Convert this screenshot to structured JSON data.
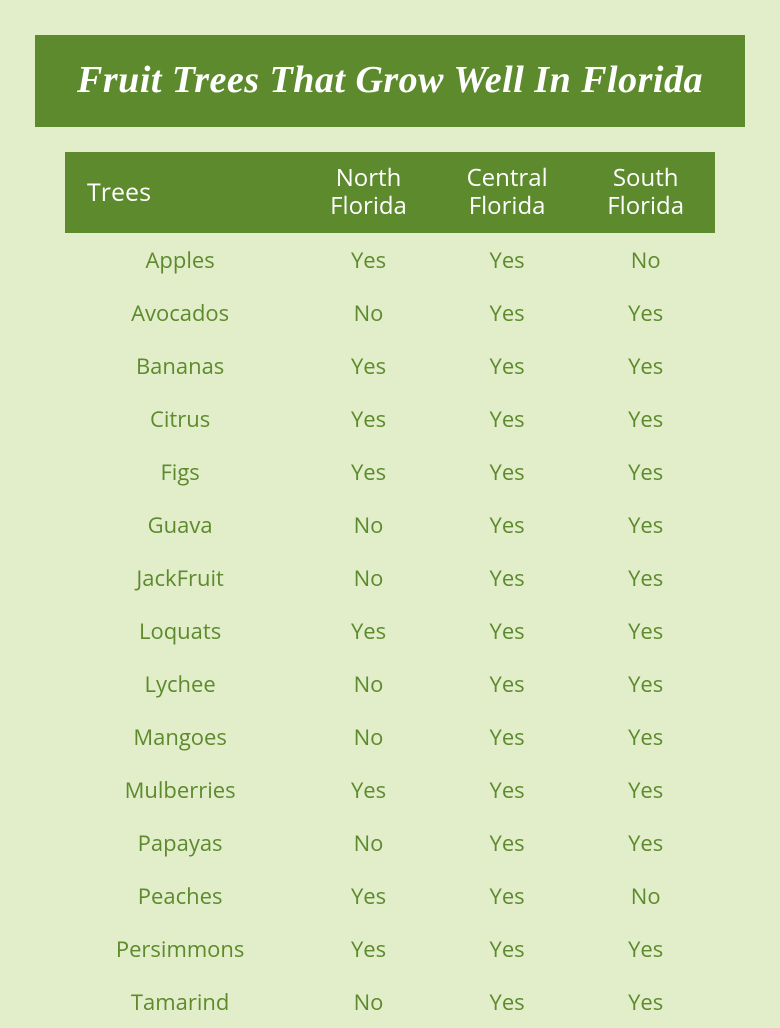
{
  "title": "Fruit Trees That Grow Well In Florida",
  "background_color": "#e1eec9",
  "banner_color": "#5d8a2c",
  "text_color": "#5d8a2c",
  "header_text_color": "#ffffff",
  "title_fontsize": 38,
  "header_fontsize": 24,
  "cell_fontsize": 22,
  "columns": [
    "Trees",
    "North Florida",
    "Central Florida",
    "South Florida"
  ],
  "rows": [
    [
      "Apples",
      "Yes",
      "Yes",
      "No"
    ],
    [
      "Avocados",
      "No",
      "Yes",
      "Yes"
    ],
    [
      "Bananas",
      "Yes",
      "Yes",
      "Yes"
    ],
    [
      "Citrus",
      "Yes",
      "Yes",
      "Yes"
    ],
    [
      "Figs",
      "Yes",
      "Yes",
      "Yes"
    ],
    [
      "Guava",
      "No",
      "Yes",
      "Yes"
    ],
    [
      "JackFruit",
      "No",
      "Yes",
      "Yes"
    ],
    [
      "Loquats",
      "Yes",
      "Yes",
      "Yes"
    ],
    [
      "Lychee",
      "No",
      "Yes",
      "Yes"
    ],
    [
      "Mangoes",
      "No",
      "Yes",
      "Yes"
    ],
    [
      "Mulberries",
      "Yes",
      "Yes",
      "Yes"
    ],
    [
      "Papayas",
      "No",
      "Yes",
      "Yes"
    ],
    [
      "Peaches",
      "Yes",
      "Yes",
      "No"
    ],
    [
      "Persimmons",
      "Yes",
      "Yes",
      "Yes"
    ],
    [
      "Tamarind",
      "No",
      "Yes",
      "Yes"
    ]
  ]
}
